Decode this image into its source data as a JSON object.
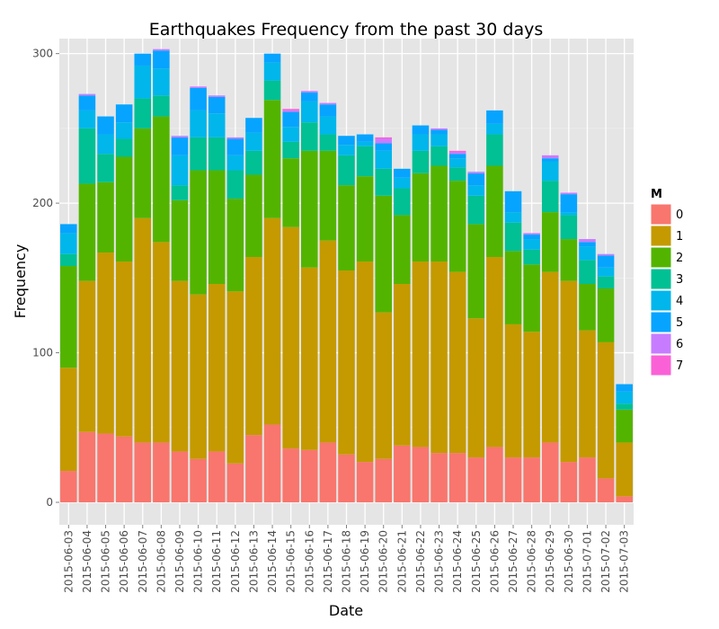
{
  "chart_data": {
    "type": "bar",
    "stacked": true,
    "title": "Earthquakes Frequency from the past 30 days",
    "xlabel": "Date",
    "ylabel": "Frequency",
    "ylim": [
      0,
      310
    ],
    "yticks": [
      0,
      100,
      200,
      300
    ],
    "grid": true,
    "legend_position": "right",
    "legend_title": "M",
    "categories": [
      "2015-06-03",
      "2015-06-04",
      "2015-06-05",
      "2015-06-06",
      "2015-06-07",
      "2015-06-08",
      "2015-06-09",
      "2015-06-10",
      "2015-06-11",
      "2015-06-12",
      "2015-06-13",
      "2015-06-14",
      "2015-06-15",
      "2015-06-16",
      "2015-06-17",
      "2015-06-18",
      "2015-06-19",
      "2015-06-20",
      "2015-06-21",
      "2015-06-22",
      "2015-06-23",
      "2015-06-24",
      "2015-06-25",
      "2015-06-26",
      "2015-06-27",
      "2015-06-28",
      "2015-06-29",
      "2015-06-30",
      "2015-07-01",
      "2015-07-02",
      "2015-07-03"
    ],
    "series": [
      {
        "name": "0",
        "color": "#F8766D",
        "values": [
          21,
          47,
          46,
          44,
          40,
          40,
          34,
          29,
          34,
          26,
          45,
          52,
          36,
          35,
          40,
          32,
          27,
          29,
          38,
          37,
          33,
          33,
          30,
          37,
          30,
          30,
          40,
          27,
          30,
          16,
          4
        ]
      },
      {
        "name": "1",
        "color": "#C49A00",
        "values": [
          69,
          101,
          121,
          117,
          150,
          134,
          114,
          110,
          112,
          115,
          119,
          138,
          148,
          122,
          135,
          123,
          134,
          98,
          108,
          124,
          128,
          121,
          93,
          127,
          89,
          84,
          114,
          121,
          85,
          91,
          36
        ]
      },
      {
        "name": "2",
        "color": "#53B400",
        "values": [
          68,
          65,
          47,
          70,
          60,
          84,
          54,
          83,
          76,
          62,
          55,
          79,
          46,
          78,
          60,
          57,
          57,
          78,
          46,
          59,
          64,
          61,
          63,
          61,
          49,
          45,
          40,
          28,
          31,
          36,
          22
        ]
      },
      {
        "name": "3",
        "color": "#00C094",
        "values": [
          8,
          37,
          19,
          12,
          20,
          14,
          10,
          22,
          22,
          19,
          16,
          13,
          11,
          19,
          11,
          20,
          20,
          18,
          18,
          15,
          13,
          9,
          19,
          21,
          19,
          10,
          21,
          16,
          16,
          8,
          4
        ]
      },
      {
        "name": "4",
        "color": "#00B6EB",
        "values": [
          14,
          12,
          13,
          11,
          22,
          18,
          20,
          18,
          16,
          10,
          12,
          12,
          10,
          14,
          12,
          7,
          3,
          12,
          7,
          11,
          8,
          6,
          7,
          7,
          7,
          7,
          13,
          2,
          9,
          6,
          8
        ]
      },
      {
        "name": "5",
        "color": "#06A4FF",
        "values": [
          6,
          10,
          12,
          12,
          8,
          12,
          12,
          15,
          11,
          11,
          10,
          6,
          10,
          6,
          8,
          6,
          5,
          5,
          6,
          6,
          3,
          3,
          8,
          9,
          14,
          3,
          2,
          12,
          3,
          8,
          5
        ]
      },
      {
        "name": "6",
        "color": "#C77CFF",
        "values": [
          0,
          1,
          0,
          0,
          0,
          1,
          1,
          1,
          1,
          1,
          0,
          0,
          1,
          1,
          1,
          0,
          0,
          3,
          0,
          0,
          1,
          1,
          1,
          0,
          0,
          1,
          2,
          1,
          2,
          1,
          0
        ]
      },
      {
        "name": "7",
        "color": "#FB61D7",
        "values": [
          0,
          0,
          0,
          0,
          0,
          0,
          0,
          0,
          0,
          0,
          0,
          0,
          1,
          0,
          0,
          0,
          0,
          1,
          0,
          0,
          0,
          1,
          0,
          0,
          0,
          0,
          0,
          0,
          0,
          0,
          0
        ]
      }
    ]
  }
}
